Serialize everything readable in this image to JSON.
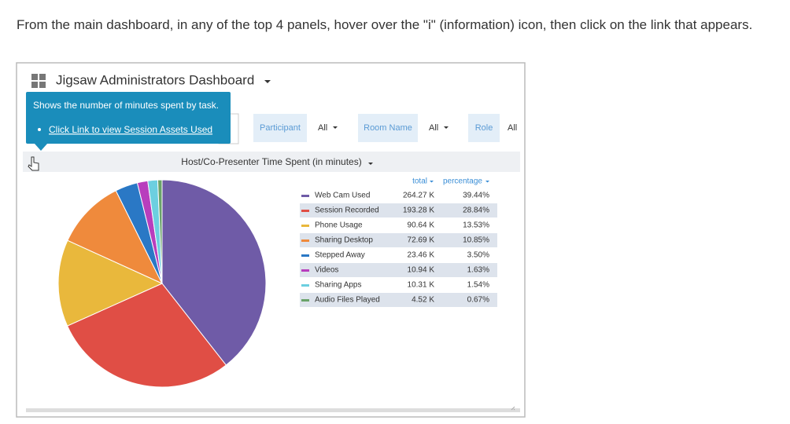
{
  "instruction": "From the main dashboard, in any of the top 4 panels, hover over the \"i\" (information) icon, then click on the link that appears.",
  "dashboard": {
    "title": "Jigsaw Administrators Dashboard",
    "tooltip": {
      "text": "Shows the number of minutes spent by task.",
      "link": "Click Link to view Session Assets Used"
    },
    "filters": [
      {
        "label": "Participant",
        "value": "All"
      },
      {
        "label": "Room Name",
        "value": "All"
      },
      {
        "label": "Role",
        "value": "All"
      }
    ]
  },
  "chart_data": {
    "type": "pie",
    "title": "Host/Co-Presenter Time Spent (in minutes)",
    "categories": [
      "Web Cam Used",
      "Session Recorded",
      "Phone Usage",
      "Sharing Desktop",
      "Stepped Away",
      "Videos",
      "Sharing Apps",
      "Audio Files Played"
    ],
    "colors": [
      "#6f5ba7",
      "#e04e45",
      "#e9b83c",
      "#ef8a3c",
      "#2a78c5",
      "#b83ebd",
      "#6ccfe0",
      "#6aa36a"
    ],
    "series": [
      {
        "name": "total",
        "values": [
          264270,
          193280,
          90640,
          72690,
          23460,
          10940,
          10310,
          4520
        ],
        "value_labels": [
          "264.27 K",
          "193.28 K",
          "90.64 K",
          "72.69 K",
          "23.46 K",
          "10.94 K",
          "10.31 K",
          "4.52 K"
        ]
      },
      {
        "name": "percentage",
        "values": [
          39.44,
          28.84,
          13.53,
          10.85,
          3.5,
          1.63,
          1.54,
          0.67
        ],
        "value_labels": [
          "39.44%",
          "28.84%",
          "13.53%",
          "10.85%",
          "3.50%",
          "1.63%",
          "1.54%",
          "0.67%"
        ]
      }
    ]
  }
}
